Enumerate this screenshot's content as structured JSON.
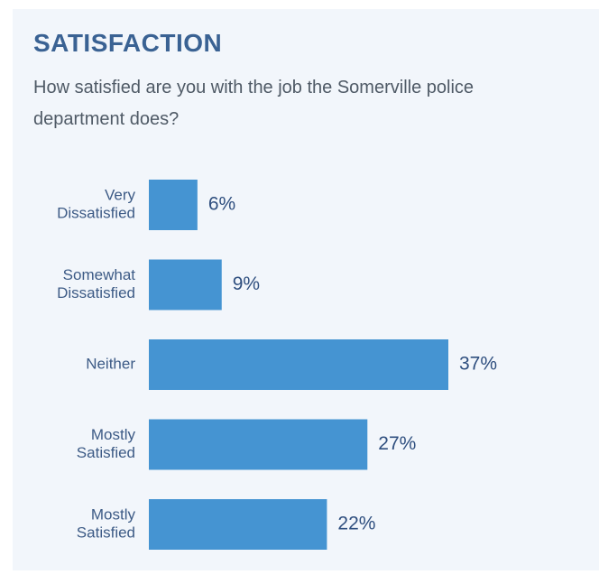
{
  "colors": {
    "panel_background": "#f2f6fb",
    "title": "#3a6293",
    "bar": "#4594d2",
    "label": "#3d5b86"
  },
  "chart_data": {
    "type": "bar",
    "orientation": "horizontal",
    "title": "SATISFACTION",
    "subtitle": "How satisfied are you with the job the Somerville police department does?",
    "categories": [
      [
        "Very",
        "Dissatisfied"
      ],
      [
        "Somewhat",
        "Dissatisfied"
      ],
      [
        "Neither"
      ],
      [
        "Mostly",
        "Satisfied"
      ],
      [
        "Mostly",
        "Satisfied"
      ]
    ],
    "values": [
      6,
      9,
      37,
      27,
      22
    ],
    "value_labels": [
      "6%",
      "9%",
      "37%",
      "27%",
      "22%"
    ],
    "xlim": [
      0,
      37
    ],
    "grid": false,
    "legend": "none"
  }
}
